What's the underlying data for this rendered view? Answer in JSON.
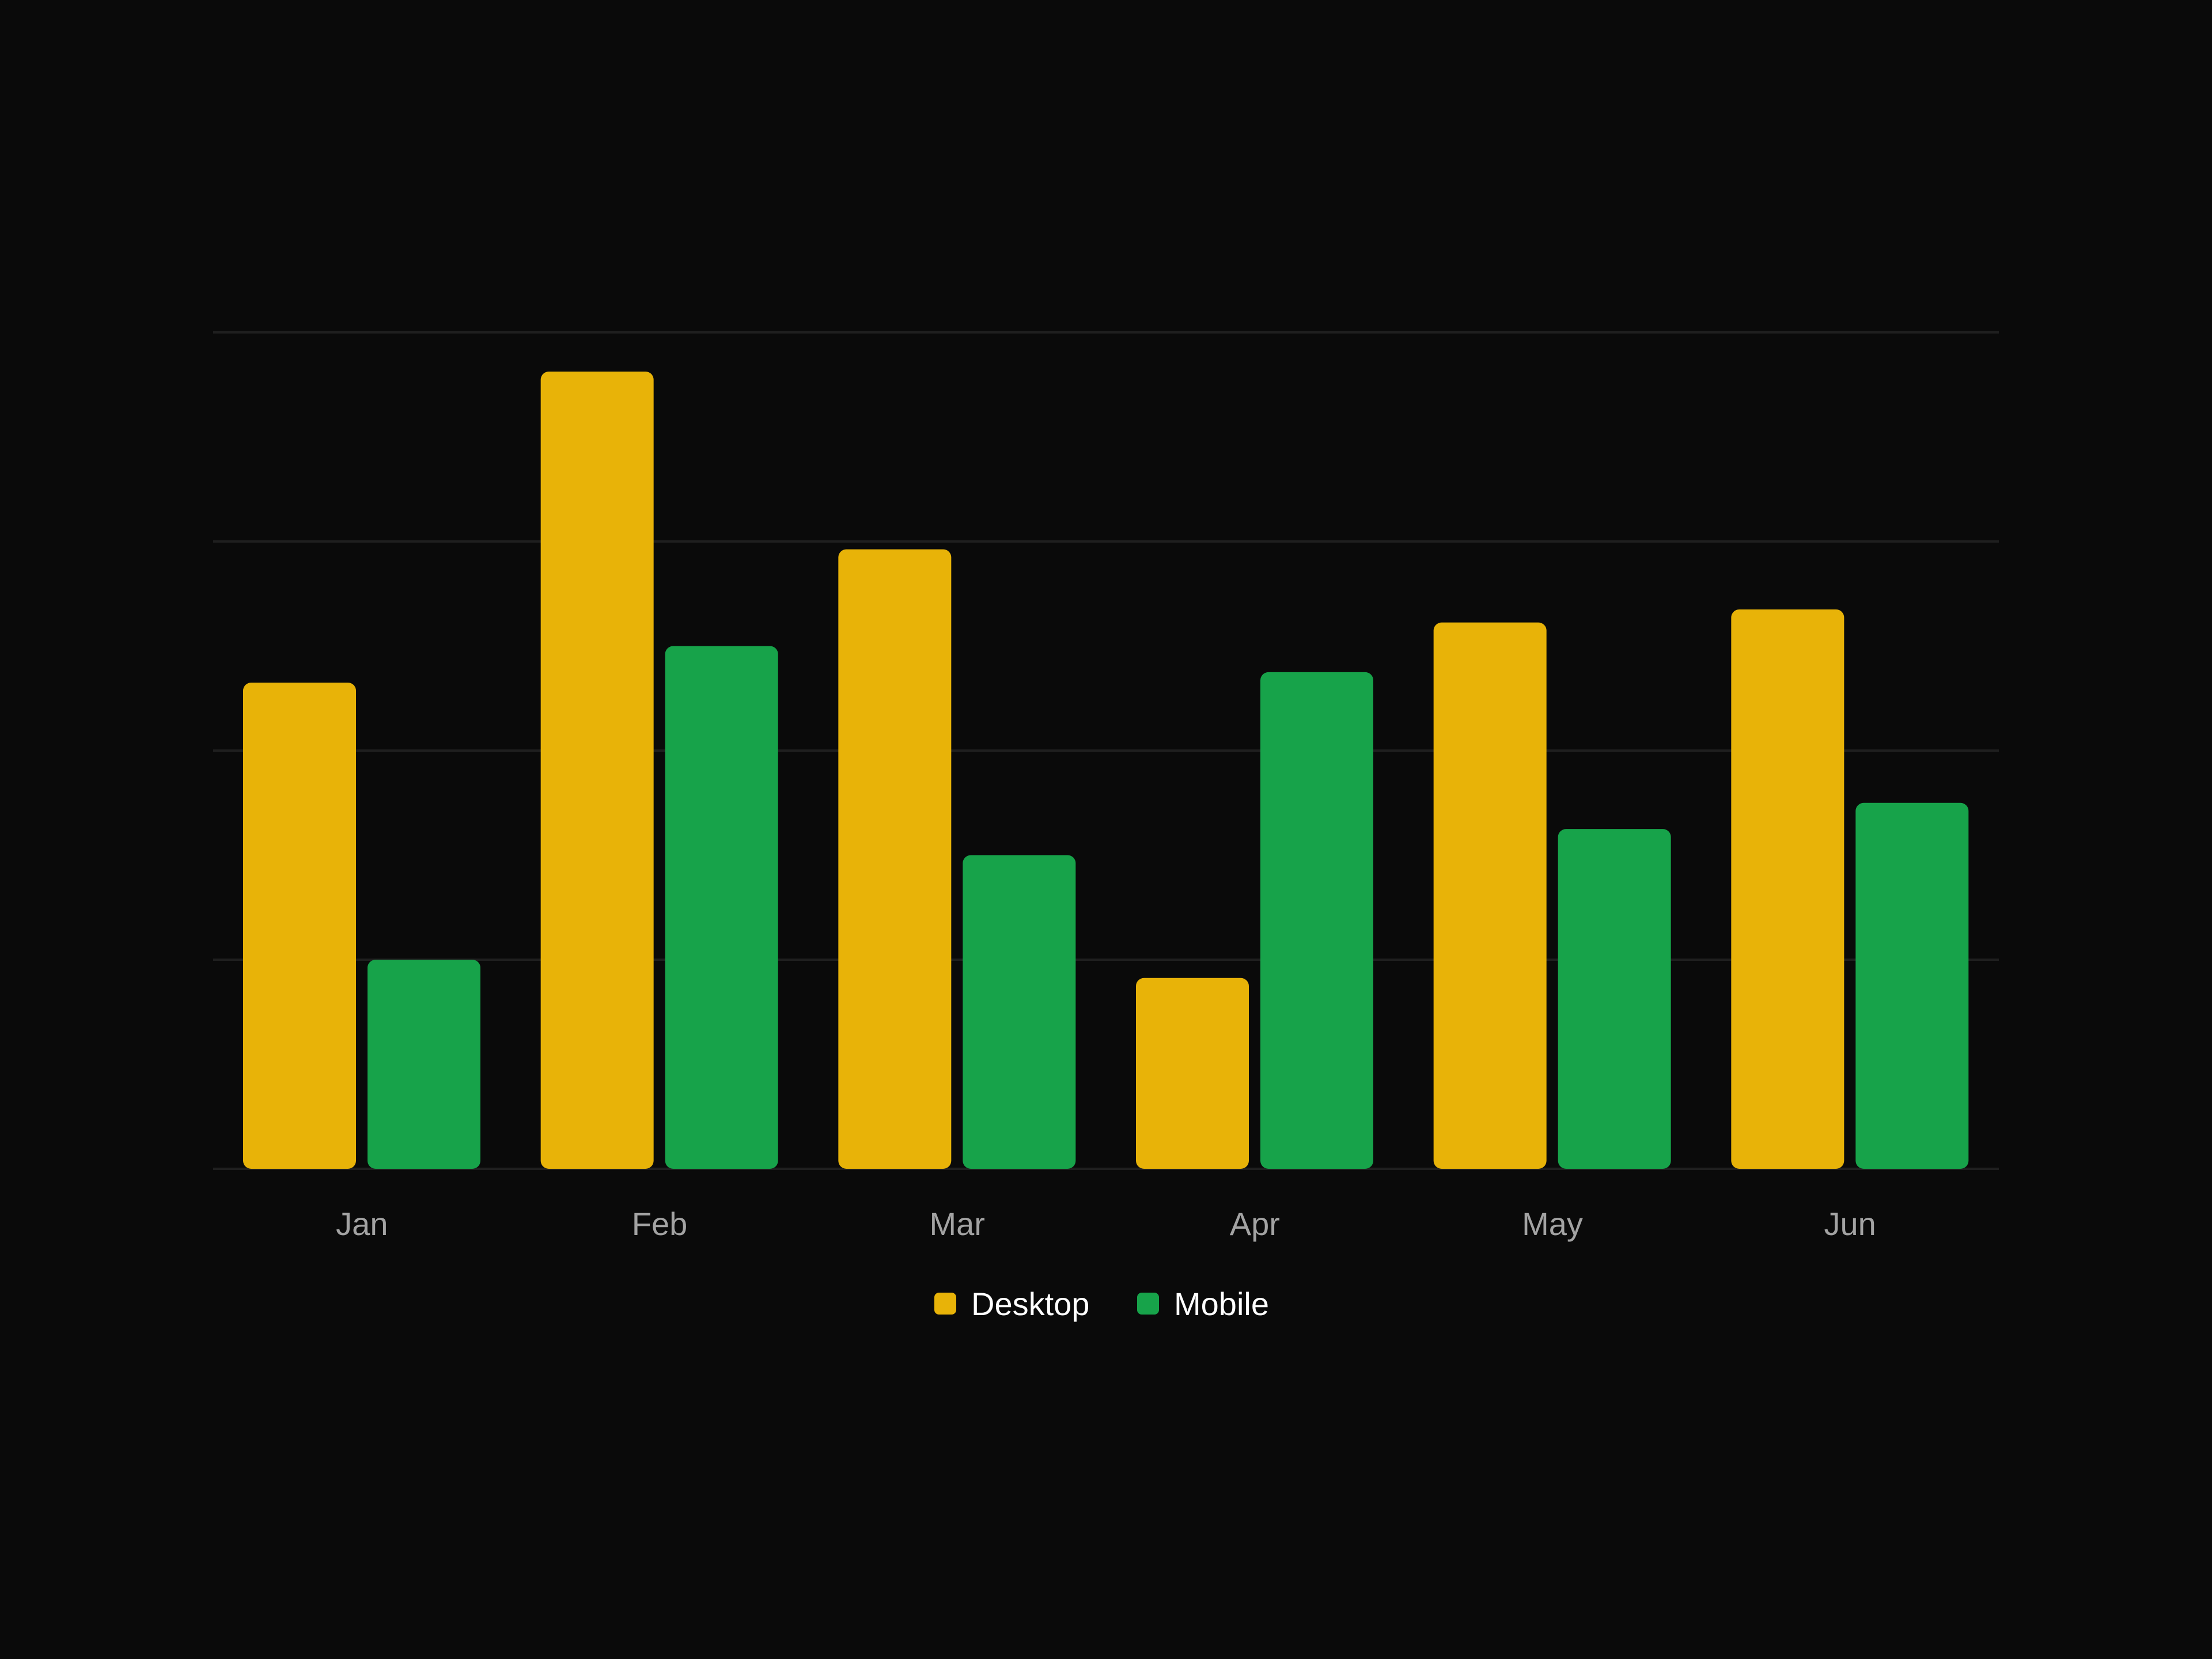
{
  "chart_data": {
    "type": "bar",
    "categories": [
      "Jan",
      "Feb",
      "Mar",
      "Apr",
      "May",
      "Jun"
    ],
    "series": [
      {
        "name": "Desktop",
        "values": [
          186,
          305,
          237,
          73,
          209,
          214
        ],
        "color": "#e8b308"
      },
      {
        "name": "Mobile",
        "values": [
          80,
          200,
          120,
          190,
          130,
          140
        ],
        "color": "#17a34a"
      }
    ],
    "ylim": [
      0,
      320
    ],
    "yticks": [
      0,
      80,
      160,
      240,
      320
    ],
    "grid": true,
    "legend": "bottom-center",
    "title": "",
    "xlabel": "",
    "ylabel": "",
    "colors": {
      "background": "#0a0a0a",
      "grid": "#1f1f1f",
      "tick_text": "#a3a3a3",
      "legend_text": "#ffffff"
    }
  }
}
